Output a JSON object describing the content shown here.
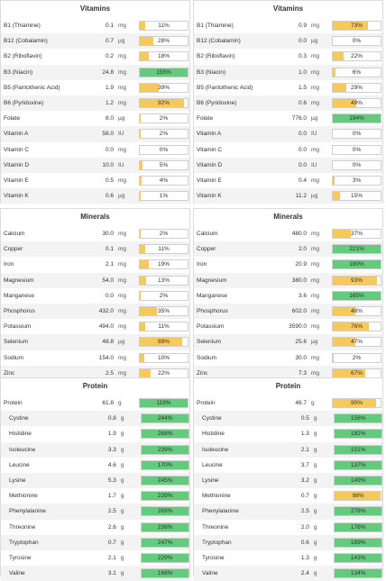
{
  "colors": {
    "yellow": "#f7c95c",
    "green": "#63cb7d"
  },
  "panels": [
    {
      "title": "Vitamins",
      "rows": [
        {
          "name": "B1 (Thiamine)",
          "amount": "0.1",
          "unit": "mg",
          "pct": "11%",
          "value": 11
        },
        {
          "name": "B12 (Cobalamin)",
          "amount": "0.7",
          "unit": "µg",
          "pct": "28%",
          "value": 28
        },
        {
          "name": "B2 (Riboflavin)",
          "amount": "0.2",
          "unit": "mg",
          "pct": "18%",
          "value": 18
        },
        {
          "name": "B3 (Niacin)",
          "amount": "24.8",
          "unit": "mg",
          "pct": "155%",
          "value": 155
        },
        {
          "name": "B5 (Pantothenic Acid)",
          "amount": "1.9",
          "unit": "mg",
          "pct": "39%",
          "value": 39
        },
        {
          "name": "B6 (Pyridoxine)",
          "amount": "1.2",
          "unit": "mg",
          "pct": "92%",
          "value": 92
        },
        {
          "name": "Folate",
          "amount": "8.0",
          "unit": "µg",
          "pct": "2%",
          "value": 2
        },
        {
          "name": "Vitamin A",
          "amount": "58.0",
          "unit": "IU",
          "pct": "2%",
          "value": 2
        },
        {
          "name": "Vitamin C",
          "amount": "0.0",
          "unit": "mg",
          "pct": "0%",
          "value": 0
        },
        {
          "name": "Vitamin D",
          "amount": "10.0",
          "unit": "IU",
          "pct": "5%",
          "value": 5
        },
        {
          "name": "Vitamin E",
          "amount": "0.5",
          "unit": "mg",
          "pct": "4%",
          "value": 4
        },
        {
          "name": "Vitamin K",
          "amount": "0.6",
          "unit": "µg",
          "pct": "1%",
          "value": 1
        }
      ]
    },
    {
      "title": "Vitamins",
      "rows": [
        {
          "name": "B1 (Thiamine)",
          "amount": "0.9",
          "unit": "mg",
          "pct": "73%",
          "value": 73
        },
        {
          "name": "B12 (Cobalamin)",
          "amount": "0.0",
          "unit": "µg",
          "pct": "0%",
          "value": 0
        },
        {
          "name": "B2 (Riboflavin)",
          "amount": "0.3",
          "unit": "mg",
          "pct": "22%",
          "value": 22
        },
        {
          "name": "B3 (Niacin)",
          "amount": "1.0",
          "unit": "mg",
          "pct": "6%",
          "value": 6
        },
        {
          "name": "B5 (Pantothenic Acid)",
          "amount": "1.5",
          "unit": "mg",
          "pct": "29%",
          "value": 29
        },
        {
          "name": "B6 (Pyridoxine)",
          "amount": "0.6",
          "unit": "mg",
          "pct": "49%",
          "value": 49
        },
        {
          "name": "Folate",
          "amount": "776.0",
          "unit": "µg",
          "pct": "194%",
          "value": 194
        },
        {
          "name": "Vitamin A",
          "amount": "0.0",
          "unit": "IU",
          "pct": "0%",
          "value": 0
        },
        {
          "name": "Vitamin C",
          "amount": "0.0",
          "unit": "mg",
          "pct": "0%",
          "value": 0
        },
        {
          "name": "Vitamin D",
          "amount": "0.0",
          "unit": "IU",
          "pct": "0%",
          "value": 0
        },
        {
          "name": "Vitamin E",
          "amount": "0.4",
          "unit": "mg",
          "pct": "3%",
          "value": 3
        },
        {
          "name": "Vitamin K",
          "amount": "11.2",
          "unit": "µg",
          "pct": "15%",
          "value": 15
        }
      ]
    },
    {
      "title": "Minerals",
      "rows": [
        {
          "name": "Calcium",
          "amount": "30.0",
          "unit": "mg",
          "pct": "2%",
          "value": 2
        },
        {
          "name": "Copper",
          "amount": "0.1",
          "unit": "mg",
          "pct": "11%",
          "value": 11
        },
        {
          "name": "Iron",
          "amount": "2.1",
          "unit": "mg",
          "pct": "19%",
          "value": 19
        },
        {
          "name": "Magnesium",
          "amount": "54.0",
          "unit": "mg",
          "pct": "13%",
          "value": 13
        },
        {
          "name": "Manganese",
          "amount": "0.0",
          "unit": "mg",
          "pct": "2%",
          "value": 2
        },
        {
          "name": "Phosphorus",
          "amount": "432.0",
          "unit": "mg",
          "pct": "35%",
          "value": 35
        },
        {
          "name": "Potassium",
          "amount": "494.0",
          "unit": "mg",
          "pct": "11%",
          "value": 11
        },
        {
          "name": "Selenium",
          "amount": "48.8",
          "unit": "µg",
          "pct": "89%",
          "value": 89
        },
        {
          "name": "Sodium",
          "amount": "154.0",
          "unit": "mg",
          "pct": "10%",
          "value": 10
        },
        {
          "name": "Zinc",
          "amount": "2.5",
          "unit": "mg",
          "pct": "22%",
          "value": 22
        }
      ]
    },
    {
      "title": "Minerals",
      "rows": [
        {
          "name": "Calcium",
          "amount": "480.0",
          "unit": "mg",
          "pct": "37%",
          "value": 37
        },
        {
          "name": "Copper",
          "amount": "2.0",
          "unit": "mg",
          "pct": "221%",
          "value": 221
        },
        {
          "name": "Iron",
          "amount": "20.9",
          "unit": "mg",
          "pct": "190%",
          "value": 190
        },
        {
          "name": "Magnesium",
          "amount": "380.0",
          "unit": "mg",
          "pct": "93%",
          "value": 93
        },
        {
          "name": "Manganese",
          "amount": "3.6",
          "unit": "mg",
          "pct": "165%",
          "value": 165
        },
        {
          "name": "Phosphorus",
          "amount": "602.0",
          "unit": "mg",
          "pct": "48%",
          "value": 48
        },
        {
          "name": "Potassium",
          "amount": "3590.0",
          "unit": "mg",
          "pct": "76%",
          "value": 76
        },
        {
          "name": "Selenium",
          "amount": "25.6",
          "unit": "µg",
          "pct": "47%",
          "value": 47
        },
        {
          "name": "Sodium",
          "amount": "30.0",
          "unit": "mg",
          "pct": "2%",
          "value": 2
        },
        {
          "name": "Zinc",
          "amount": "7.3",
          "unit": "mg",
          "pct": "67%",
          "value": 67
        }
      ]
    },
    {
      "title": "Protein",
      "rows": [
        {
          "name": "Protein",
          "amount": "61.8",
          "unit": "g",
          "pct": "119%",
          "value": 119,
          "top": true
        },
        {
          "name": "Cystine",
          "amount": "0.8",
          "unit": "g",
          "pct": "244%",
          "value": 244
        },
        {
          "name": "Histidine",
          "amount": "1.9",
          "unit": "g",
          "pct": "268%",
          "value": 268
        },
        {
          "name": "Isoleucine",
          "amount": "3.3",
          "unit": "g",
          "pct": "239%",
          "value": 239
        },
        {
          "name": "Leucine",
          "amount": "4.6",
          "unit": "g",
          "pct": "170%",
          "value": 170
        },
        {
          "name": "Lysine",
          "amount": "5.3",
          "unit": "g",
          "pct": "245%",
          "value": 245
        },
        {
          "name": "Methionine",
          "amount": "1.7",
          "unit": "g",
          "pct": "239%",
          "value": 239
        },
        {
          "name": "Phenylalanine",
          "amount": "2.5",
          "unit": "g",
          "pct": "269%",
          "value": 269
        },
        {
          "name": "Threonine",
          "amount": "2.6",
          "unit": "g",
          "pct": "236%",
          "value": 236
        },
        {
          "name": "Tryptophan",
          "amount": "0.7",
          "unit": "g",
          "pct": "247%",
          "value": 247
        },
        {
          "name": "Tyrosine",
          "amount": "2.1",
          "unit": "g",
          "pct": "229%",
          "value": 229
        },
        {
          "name": "Valine",
          "amount": "3.1",
          "unit": "g",
          "pct": "168%",
          "value": 168
        }
      ]
    },
    {
      "title": "Protein",
      "rows": [
        {
          "name": "Protein",
          "amount": "46.7",
          "unit": "g",
          "pct": "90%",
          "value": 90,
          "top": true
        },
        {
          "name": "Cystine",
          "amount": "0.5",
          "unit": "g",
          "pct": "156%",
          "value": 156
        },
        {
          "name": "Histidine",
          "amount": "1.3",
          "unit": "g",
          "pct": "182%",
          "value": 182
        },
        {
          "name": "Isoleucine",
          "amount": "2.1",
          "unit": "g",
          "pct": "151%",
          "value": 151
        },
        {
          "name": "Leucine",
          "amount": "3.7",
          "unit": "g",
          "pct": "137%",
          "value": 137
        },
        {
          "name": "Lysine",
          "amount": "3.2",
          "unit": "g",
          "pct": "149%",
          "value": 149
        },
        {
          "name": "Methionine",
          "amount": "0.7",
          "unit": "g",
          "pct": "98%",
          "value": 98
        },
        {
          "name": "Phenylalanine",
          "amount": "2.5",
          "unit": "g",
          "pct": "278%",
          "value": 278
        },
        {
          "name": "Threonine",
          "amount": "2.0",
          "unit": "g",
          "pct": "178%",
          "value": 178
        },
        {
          "name": "Tryptophan",
          "amount": "0.6",
          "unit": "g",
          "pct": "189%",
          "value": 189
        },
        {
          "name": "Tyrosine",
          "amount": "1.3",
          "unit": "g",
          "pct": "143%",
          "value": 143
        },
        {
          "name": "Valine",
          "amount": "2.4",
          "unit": "g",
          "pct": "134%",
          "value": 134
        }
      ]
    }
  ]
}
